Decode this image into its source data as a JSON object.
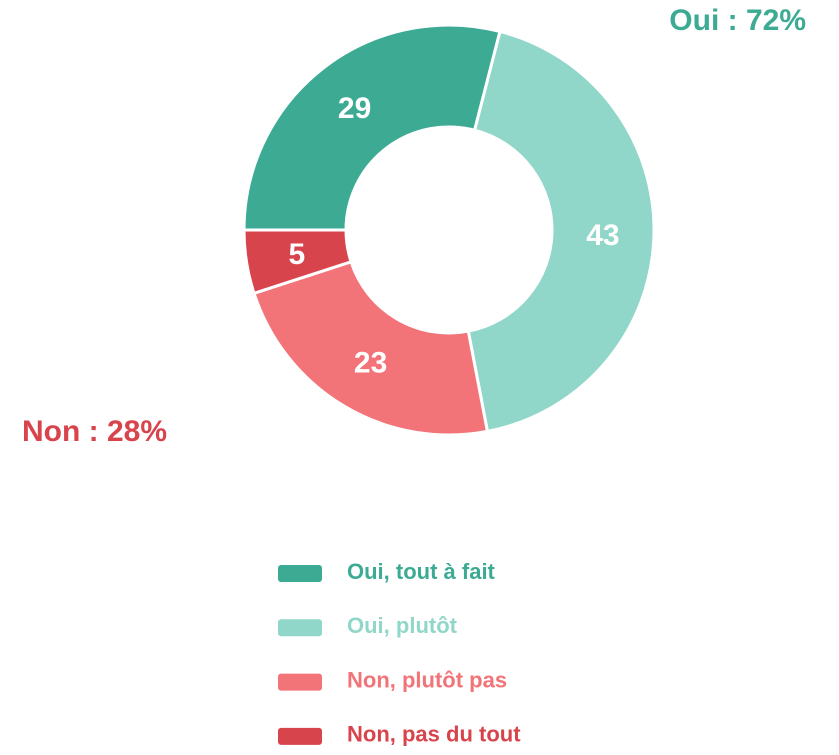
{
  "chart_data": {
    "type": "donut",
    "categories": [
      "Oui, tout à fait",
      "Oui, plutôt",
      "Non, plutôt pas",
      "Non, pas du tout"
    ],
    "values": [
      29,
      43,
      23,
      5
    ],
    "colors": [
      "#3dab94",
      "#90d7c9",
      "#f27478",
      "#d8444c"
    ],
    "annotations": [
      {
        "text": "Oui : 72%",
        "color": "#3dab94"
      },
      {
        "text": "Non : 28%",
        "color": "#d8444c"
      }
    ]
  }
}
